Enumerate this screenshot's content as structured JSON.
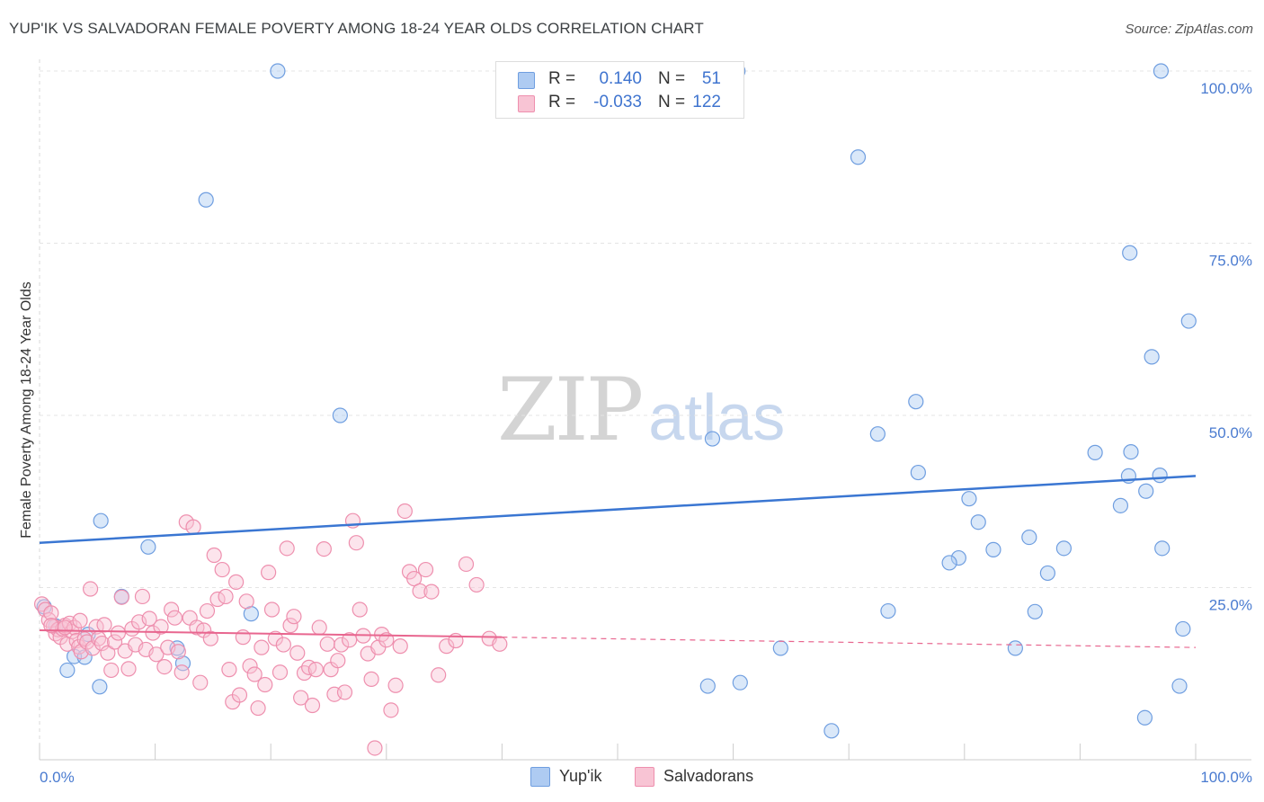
{
  "title": "YUP'IK VS SALVADORAN FEMALE POVERTY AMONG 18-24 YEAR OLDS CORRELATION CHART",
  "source": "Source: ZipAtlas.com",
  "watermark": {
    "zip": "ZIP",
    "atlas": "atlas"
  },
  "legend": {
    "rows": [
      {
        "r_label": "R =",
        "r_value": "0.140",
        "n_label": "N =",
        "n_value": "51",
        "color": "#aecbf2",
        "border": "#6f9ee0"
      },
      {
        "r_label": "R =",
        "r_value": "-0.033",
        "n_label": "N =",
        "n_value": "122",
        "color": "#f8c4d4",
        "border": "#ee8fae"
      }
    ]
  },
  "bottom_legend": [
    {
      "label": "Yup'ik",
      "color": "#aecbf2",
      "border": "#6f9ee0"
    },
    {
      "label": "Salvadorans",
      "color": "#f8c4d4",
      "border": "#ee8fae"
    }
  ],
  "chart_data": {
    "type": "scatter",
    "title": "YUP'IK VS SALVADORAN FEMALE POVERTY AMONG 18-24 YEAR OLDS CORRELATION CHART",
    "xlabel": "",
    "ylabel": "Female Poverty Among 18-24 Year Olds",
    "xlim": [
      0,
      100
    ],
    "ylim": [
      0,
      100
    ],
    "x_tick_labels": [
      "0.0%",
      "100.0%"
    ],
    "y_tick_labels": [
      "25.0%",
      "50.0%",
      "75.0%",
      "100.0%"
    ],
    "y_tick_values": [
      25,
      50,
      75,
      100
    ],
    "grid": true,
    "series": [
      {
        "name": "Yup'ik",
        "color": "#6f9ee0",
        "fill": "#aecbf2",
        "trend": {
          "x": [
            0,
            100
          ],
          "y": [
            31.5,
            41.2
          ],
          "style": "solid"
        },
        "x": [
          0.4,
          1.4,
          2.4,
          3.0,
          3.9,
          4.2,
          5.3,
          5.2,
          7.1,
          9.4,
          11.9,
          18.3,
          12.4,
          14.4,
          26.0,
          20.6,
          58.2,
          60.4,
          75.8,
          72.5,
          70.8,
          73.4,
          76.0,
          79.5,
          82.5,
          80.4,
          78.7,
          85.6,
          86.1,
          87.2,
          88.6,
          91.3,
          93.5,
          95.6,
          94.3,
          96.2,
          96.9,
          97.1,
          98.9,
          99.4,
          98.6,
          97.0,
          84.4,
          64.1,
          60.6,
          57.8,
          68.5,
          95.7,
          94.2,
          94.4,
          81.2
        ],
        "y": [
          22.2,
          19.4,
          13.0,
          15.0,
          14.9,
          18.2,
          34.7,
          10.6,
          23.7,
          30.9,
          16.2,
          21.2,
          14.0,
          81.3,
          50.0,
          100.0,
          46.6,
          100.0,
          52.0,
          47.3,
          87.5,
          21.6,
          41.7,
          29.3,
          30.5,
          37.9,
          28.6,
          32.3,
          21.5,
          27.1,
          30.7,
          44.6,
          36.9,
          6.1,
          73.6,
          58.5,
          41.3,
          30.7,
          19.0,
          63.7,
          10.7,
          100.0,
          16.2,
          16.2,
          11.2,
          10.7,
          4.2,
          39.0,
          41.2,
          44.7,
          34.5
        ]
      },
      {
        "name": "Salvadorans",
        "color": "#ee8fae",
        "fill": "#f8c4d4",
        "trend": {
          "x": [
            0,
            40,
            100
          ],
          "y": [
            18.8,
            17.8,
            16.3
          ],
          "solid_until": 40,
          "style": "solid-then-dashed"
        },
        "x": [
          0.2,
          0.5,
          0.8,
          1.0,
          1.2,
          1.4,
          1.6,
          1.8,
          2.0,
          2.2,
          2.4,
          2.6,
          2.8,
          3.0,
          3.2,
          3.4,
          3.6,
          3.9,
          4.1,
          4.4,
          4.6,
          4.9,
          5.1,
          5.4,
          5.6,
          5.9,
          6.2,
          6.5,
          6.8,
          7.1,
          7.4,
          7.7,
          8.0,
          8.3,
          8.6,
          8.9,
          9.2,
          9.5,
          9.8,
          10.1,
          10.5,
          10.8,
          11.1,
          11.4,
          11.7,
          12.0,
          12.3,
          12.7,
          13.0,
          13.3,
          13.6,
          13.9,
          14.2,
          14.5,
          14.8,
          15.1,
          15.4,
          15.8,
          16.1,
          16.4,
          16.7,
          17.0,
          17.3,
          17.6,
          17.9,
          18.2,
          18.6,
          18.9,
          19.2,
          19.5,
          19.8,
          20.1,
          20.4,
          20.8,
          21.1,
          21.4,
          21.7,
          22.0,
          22.3,
          22.6,
          22.9,
          23.3,
          23.6,
          23.9,
          24.2,
          24.6,
          24.9,
          25.2,
          25.5,
          25.8,
          26.1,
          26.4,
          26.8,
          27.1,
          27.4,
          27.7,
          28.0,
          28.4,
          28.7,
          29.0,
          29.3,
          29.6,
          30.0,
          30.4,
          30.8,
          31.2,
          31.6,
          32.0,
          32.4,
          32.9,
          33.4,
          33.9,
          34.5,
          35.2,
          36.0,
          36.9,
          37.8,
          38.9,
          39.8,
          1.0,
          2.2,
          3.5
        ],
        "y": [
          22.6,
          21.8,
          20.3,
          21.3,
          19.4,
          18.3,
          18.9,
          17.8,
          19.0,
          19.5,
          16.8,
          19.8,
          18.6,
          19.2,
          17.3,
          16.4,
          15.7,
          17.5,
          17.1,
          24.8,
          16.2,
          19.3,
          17.6,
          16.9,
          19.6,
          15.5,
          13.0,
          17.1,
          18.4,
          23.6,
          15.8,
          13.2,
          19.0,
          16.7,
          20.0,
          23.7,
          16.0,
          20.5,
          18.4,
          15.3,
          19.3,
          13.5,
          16.3,
          21.8,
          20.6,
          15.7,
          12.7,
          34.5,
          20.6,
          33.8,
          19.2,
          11.2,
          18.8,
          21.6,
          17.6,
          29.7,
          23.3,
          27.6,
          23.7,
          13.1,
          8.4,
          25.8,
          9.4,
          17.8,
          23.0,
          13.6,
          12.4,
          7.5,
          16.3,
          10.9,
          27.2,
          21.8,
          17.6,
          12.7,
          16.7,
          30.7,
          19.5,
          20.8,
          15.5,
          9.0,
          12.6,
          13.4,
          7.9,
          13.1,
          19.2,
          30.6,
          16.8,
          13.1,
          9.5,
          14.4,
          16.7,
          9.8,
          17.4,
          34.7,
          31.5,
          21.8,
          18.0,
          15.4,
          11.7,
          1.7,
          16.3,
          18.2,
          17.4,
          7.2,
          10.8,
          16.5,
          36.1,
          27.3,
          26.3,
          24.5,
          27.6,
          24.4,
          12.3,
          16.5,
          17.3,
          28.4,
          25.4,
          17.6,
          16.8,
          19.5,
          19.2,
          20.2
        ]
      }
    ]
  }
}
